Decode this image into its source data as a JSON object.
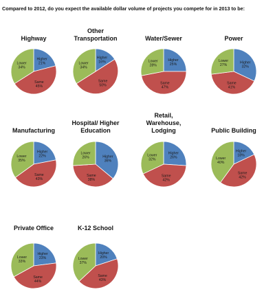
{
  "header": {
    "question": "Compared to 2012, do you expect the available dollar volume of projects you compete for in 2013 to be:"
  },
  "colors": {
    "Higher": "#4f81bd",
    "Same": "#c0504d",
    "Lower": "#9bbb59"
  },
  "chart_data": [
    {
      "type": "pie",
      "title": [
        "Highway"
      ],
      "categories": [
        "Higher",
        "Same",
        "Lower"
      ],
      "values": [
        21,
        45,
        34
      ]
    },
    {
      "type": "pie",
      "title": [
        "Other",
        "Transportation"
      ],
      "categories": [
        "Higher",
        "Same",
        "Lower"
      ],
      "values": [
        16,
        50,
        34
      ]
    },
    {
      "type": "pie",
      "title": [
        "Water/Sewer"
      ],
      "categories": [
        "Higher",
        "Same",
        "Lower"
      ],
      "values": [
        25,
        47,
        28
      ]
    },
    {
      "type": "pie",
      "title": [
        "Power"
      ],
      "categories": [
        "Higher",
        "Same",
        "Lower"
      ],
      "values": [
        32,
        41,
        27
      ]
    },
    {
      "type": "pie",
      "title": [
        "Manufacturing"
      ],
      "categories": [
        "Higher",
        "Same",
        "Lower"
      ],
      "values": [
        22,
        43,
        35
      ]
    },
    {
      "type": "pie",
      "title": [
        "Hospital/ Higher",
        "Education"
      ],
      "categories": [
        "Higher",
        "Same",
        "Lower"
      ],
      "values": [
        36,
        38,
        26
      ]
    },
    {
      "type": "pie",
      "title": [
        "Retail,",
        "Warehouse,",
        "Lodging"
      ],
      "categories": [
        "Higher",
        "Same",
        "Lower"
      ],
      "values": [
        26,
        42,
        32
      ]
    },
    {
      "type": "pie",
      "title": [
        "Public Building"
      ],
      "categories": [
        "Higher",
        "Same",
        "Lower"
      ],
      "values": [
        18,
        42,
        40
      ]
    },
    {
      "type": "pie",
      "title": [
        "Private Office"
      ],
      "categories": [
        "Higher",
        "Same",
        "Lower"
      ],
      "values": [
        23,
        44,
        33
      ]
    },
    {
      "type": "pie",
      "title": [
        "K-12 School"
      ],
      "categories": [
        "Higher",
        "Same",
        "Lower"
      ],
      "values": [
        20,
        43,
        37
      ]
    }
  ]
}
